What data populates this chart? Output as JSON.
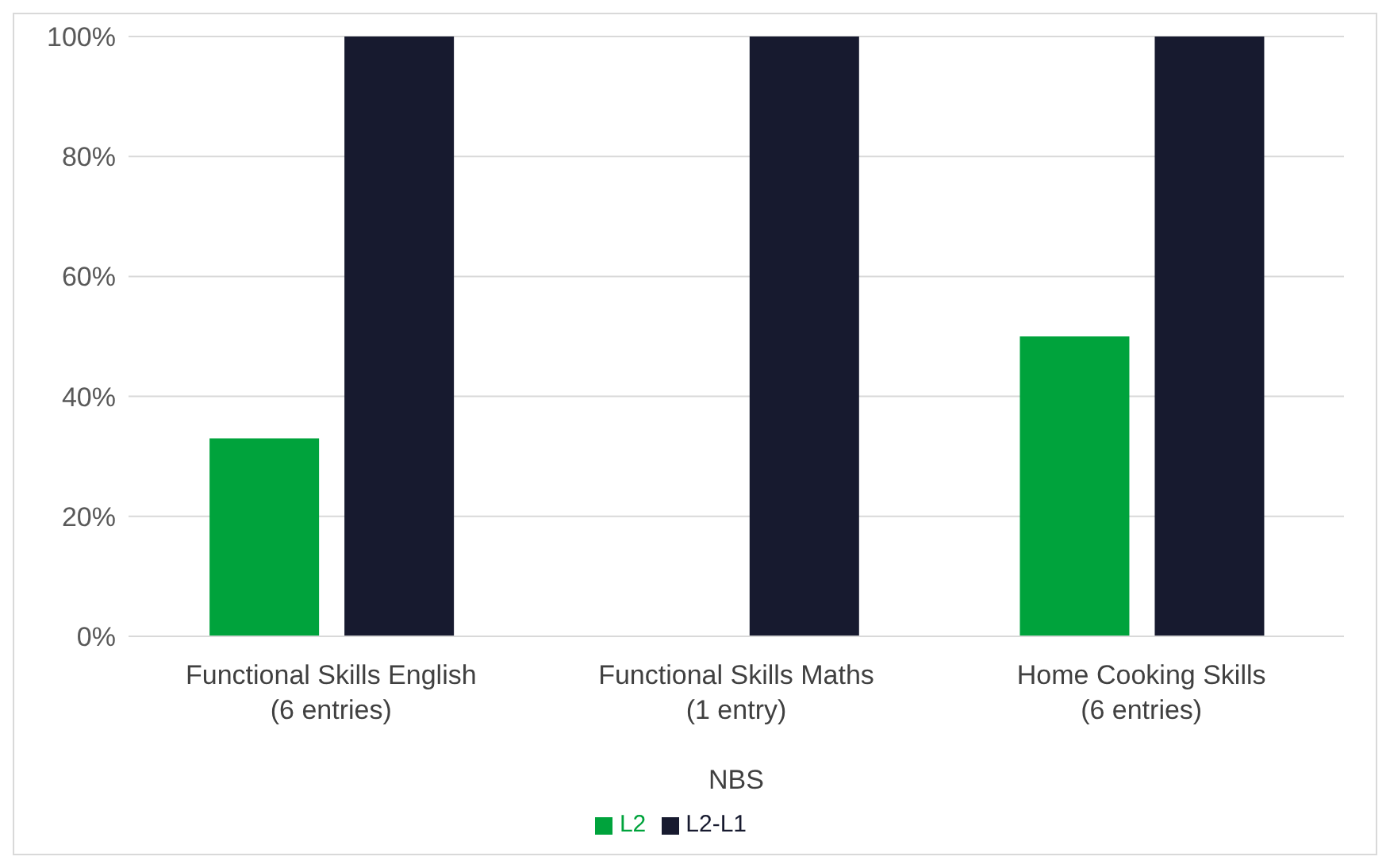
{
  "chart_data": {
    "type": "bar",
    "categories": [
      "Functional Skills English\n(6 entries)",
      "Functional Skills Maths\n(1 entry)",
      "Home Cooking Skills\n(6 entries)"
    ],
    "xlabel": "NBS",
    "series": [
      {
        "name": "L2",
        "color": "#00a33c",
        "values": [
          33,
          null,
          50
        ]
      },
      {
        "name": "L2-L1",
        "color": "#171a2f",
        "values": [
          100,
          100,
          100
        ]
      }
    ],
    "ylim": [
      0,
      100
    ],
    "yticks": [
      {
        "value": 0,
        "label": "0%"
      },
      {
        "value": 20,
        "label": "20%"
      },
      {
        "value": 40,
        "label": "40%"
      },
      {
        "value": 60,
        "label": "60%"
      },
      {
        "value": 80,
        "label": "80%"
      },
      {
        "value": 100,
        "label": "100%"
      }
    ],
    "grid": "y",
    "legend": "bottom"
  }
}
